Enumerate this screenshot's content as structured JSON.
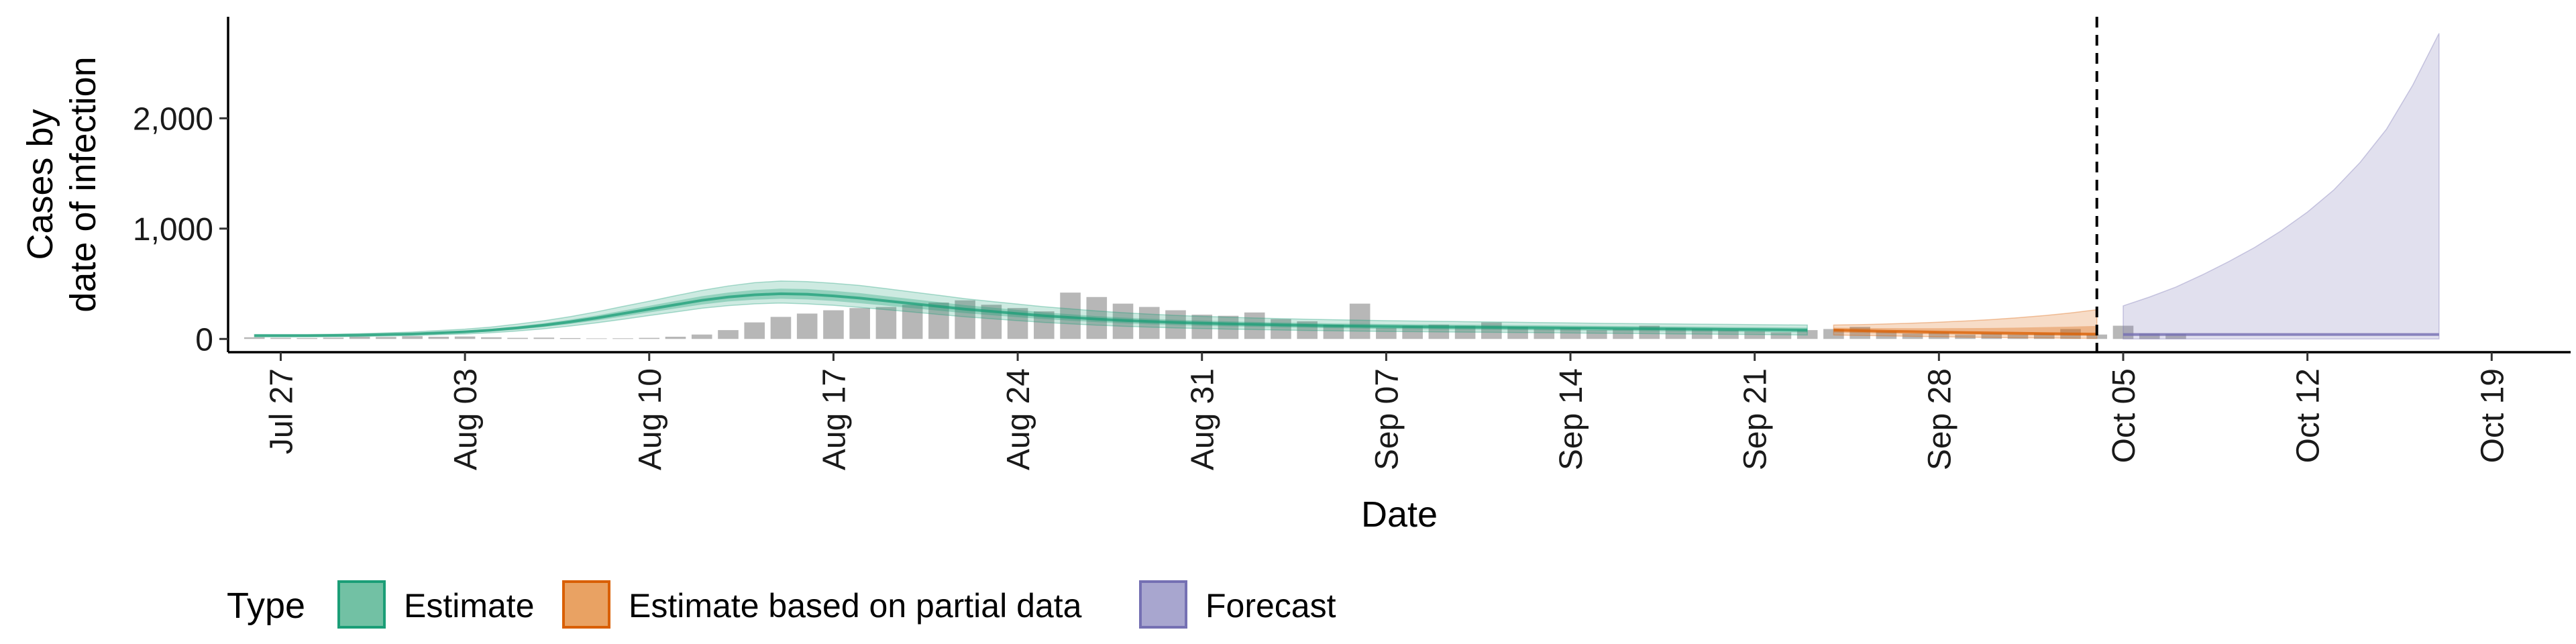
{
  "chart_data": {
    "type": "area",
    "title": "",
    "xlabel": "Date",
    "ylabel_lines": [
      "Cases by",
      "date of infection"
    ],
    "x_tick_labels": [
      "Jul 27",
      "Aug 03",
      "Aug 10",
      "Aug 17",
      "Aug 24",
      "Aug 31",
      "Sep 07",
      "Sep 14",
      "Sep 21",
      "Sep 28",
      "Oct 05",
      "Oct 12",
      "Oct 19"
    ],
    "x_ticks": [
      "2020-07-27",
      "2020-08-03",
      "2020-08-10",
      "2020-08-17",
      "2020-08-24",
      "2020-08-31",
      "2020-09-07",
      "2020-09-14",
      "2020-09-21",
      "2020-09-28",
      "2020-10-05",
      "2020-10-12",
      "2020-10-19"
    ],
    "y_tick_labels": [
      "0",
      "1,000",
      "2,000"
    ],
    "y_ticks": [
      0,
      1000,
      2000
    ],
    "xlim": [
      "2020-07-25",
      "2020-10-22"
    ],
    "ylim": [
      -120,
      2920
    ],
    "grid": false,
    "forecast_boundary_date": "2020-10-04",
    "reported_cases": {
      "start_date": "2020-07-26",
      "values": [
        15,
        10,
        8,
        12,
        20,
        18,
        25,
        20,
        22,
        15,
        10,
        12,
        8,
        5,
        6,
        10,
        20,
        40,
        80,
        150,
        200,
        230,
        260,
        280,
        290,
        310,
        330,
        350,
        310,
        280,
        250,
        420,
        380,
        320,
        290,
        260,
        220,
        210,
        240,
        180,
        160,
        130,
        320,
        100,
        120,
        130,
        120,
        150,
        110,
        90,
        100,
        80,
        90,
        120,
        100,
        90,
        80,
        70,
        60,
        80,
        90,
        110,
        70,
        50,
        60,
        40,
        50,
        40,
        50,
        90,
        40,
        120,
        50,
        45
      ]
    },
    "estimate": {
      "start_date": "2020-07-26",
      "end_date": "2020-09-24",
      "median": [
        30,
        30,
        30,
        32,
        35,
        40,
        45,
        55,
        65,
        80,
        100,
        125,
        155,
        190,
        230,
        270,
        310,
        350,
        380,
        400,
        410,
        405,
        390,
        370,
        345,
        320,
        295,
        270,
        250,
        230,
        210,
        195,
        180,
        168,
        158,
        150,
        143,
        137,
        132,
        127,
        123,
        119,
        116,
        113,
        111,
        109,
        107,
        105,
        103,
        101,
        99,
        97,
        95,
        93,
        91,
        89,
        87,
        85,
        83,
        81
      ],
      "inner_lower": [
        26,
        26,
        26,
        27,
        30,
        34,
        38,
        46,
        55,
        68,
        85,
        108,
        135,
        167,
        203,
        240,
        276,
        312,
        340,
        356,
        364,
        358,
        344,
        324,
        302,
        279,
        256,
        234,
        215,
        197,
        180,
        166,
        153,
        142,
        133,
        126,
        119,
        114,
        110,
        105,
        101,
        97,
        94,
        91,
        89,
        87,
        85,
        83,
        81,
        79,
        77,
        75,
        73,
        71,
        69,
        67,
        65,
        63,
        61,
        59
      ],
      "inner_upper": [
        34,
        34,
        34,
        37,
        40,
        46,
        52,
        64,
        75,
        92,
        115,
        142,
        175,
        213,
        257,
        300,
        344,
        388,
        420,
        444,
        456,
        452,
        436,
        416,
        388,
        361,
        334,
        306,
        285,
        263,
        240,
        224,
        207,
        194,
        183,
        174,
        167,
        160,
        154,
        149,
        145,
        141,
        138,
        135,
        133,
        131,
        129,
        127,
        125,
        123,
        121,
        119,
        117,
        115,
        113,
        111,
        109,
        107,
        105,
        103
      ],
      "outer_lower": [
        20,
        20,
        20,
        21,
        23,
        27,
        31,
        38,
        45,
        56,
        72,
        92,
        117,
        146,
        178,
        212,
        245,
        278,
        302,
        318,
        325,
        318,
        305,
        286,
        265,
        244,
        222,
        201,
        183,
        166,
        150,
        137,
        125,
        115,
        107,
        100,
        94,
        89,
        85,
        81,
        77,
        74,
        71,
        68,
        66,
        64,
        62,
        60,
        58,
        56,
        54,
        52,
        50,
        48,
        46,
        44,
        42,
        40,
        38,
        36
      ],
      "outer_upper": [
        40,
        40,
        40,
        43,
        48,
        55,
        63,
        76,
        89,
        108,
        135,
        165,
        202,
        246,
        295,
        342,
        392,
        440,
        480,
        510,
        525,
        520,
        505,
        485,
        456,
        426,
        396,
        365,
        340,
        316,
        292,
        273,
        254,
        238,
        225,
        214,
        205,
        197,
        190,
        184,
        179,
        174,
        170,
        166,
        163,
        160,
        157,
        154,
        151,
        148,
        145,
        142,
        140,
        138,
        136,
        134,
        132,
        130,
        128,
        126
      ]
    },
    "partial_estimate": {
      "start_date": "2020-09-24",
      "end_date": "2020-10-04",
      "median": [
        81,
        75,
        70,
        66,
        62,
        58,
        55,
        52,
        49,
        46,
        44
      ],
      "inner_lower": [
        59,
        54,
        50,
        46,
        43,
        40,
        37,
        34,
        32,
        30,
        28
      ],
      "inner_upper": [
        103,
        100,
        98,
        97,
        97,
        98,
        100,
        103,
        107,
        112,
        118
      ],
      "outer_lower": [
        36,
        32,
        28,
        24,
        20,
        17,
        14,
        11,
        9,
        7,
        5
      ],
      "outer_upper": [
        126,
        130,
        136,
        143,
        152,
        163,
        176,
        192,
        212,
        236,
        265
      ]
    },
    "forecast": {
      "start_date": "2020-10-05",
      "end_date": "2020-10-17",
      "median": [
        40,
        40,
        40,
        40,
        40,
        40,
        40,
        40,
        40,
        40,
        40,
        40,
        40
      ],
      "inner_lower": [
        28,
        28,
        28,
        28,
        28,
        28,
        28,
        28,
        28,
        28,
        28,
        28,
        28
      ],
      "inner_upper": [
        52,
        52,
        52,
        52,
        52,
        52,
        52,
        52,
        52,
        52,
        52,
        52,
        52
      ],
      "outer_lower": [
        0,
        0,
        0,
        0,
        0,
        0,
        0,
        0,
        0,
        0,
        0,
        0,
        0
      ],
      "outer_upper": [
        300,
        380,
        470,
        580,
        700,
        830,
        980,
        1150,
        1350,
        1600,
        1900,
        2300,
        2770
      ]
    },
    "legend": {
      "title": "Type",
      "position": "bottom",
      "items": [
        {
          "label": "Estimate",
          "fill": "#72C1A4",
          "stroke": "#1B9E77"
        },
        {
          "label": "Estimate based on partial data",
          "fill": "#E9A263",
          "stroke": "#D95F02"
        },
        {
          "label": "Forecast",
          "fill": "#A8A6CF",
          "stroke": "#7570B3"
        }
      ]
    },
    "colors": {
      "bars": "#B3B3B3",
      "estimate": "#1B9E77",
      "partial": "#D95F02",
      "forecast": "#7570B3",
      "boundary_line": "#000000"
    }
  }
}
